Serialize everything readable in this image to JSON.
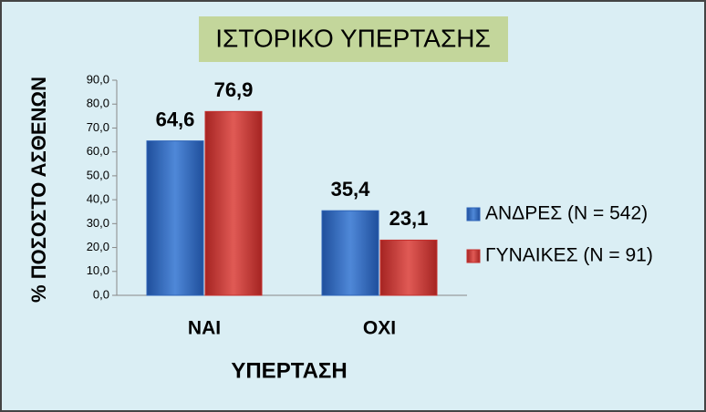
{
  "chart_data": {
    "type": "bar",
    "title": "ΙΣΤΟΡΙΚΟ ΥΠΕΡΤΑΣΗΣ",
    "x_label": "ΥΠΕΡΤΑΣΗ",
    "y_label": "% ΠΟΣΟΣΤΟ ΑΣΘΕΝΩΝ",
    "categories": [
      "ΝΑΙ",
      "ΟΧΙ"
    ],
    "series": [
      {
        "name": "ΑΝΔΡΕΣ (N = 542)",
        "color": "#2e64b8",
        "values": [
          64.6,
          35.4
        ],
        "value_labels": [
          "64,6",
          "35,4"
        ]
      },
      {
        "name": "ΓΥΝΑΙΚΕΣ (N = 91)",
        "color": "#c4302e",
        "values": [
          76.9,
          23.1
        ],
        "value_labels": [
          "76,9",
          "23,1"
        ]
      }
    ],
    "ylim": [
      0,
      90
    ],
    "yticks": [
      {
        "value": 0,
        "label": "0,0"
      },
      {
        "value": 10,
        "label": "10,0"
      },
      {
        "value": 20,
        "label": "20,0"
      },
      {
        "value": 30,
        "label": "30,0"
      },
      {
        "value": 40,
        "label": "40,0"
      },
      {
        "value": 50,
        "label": "50,0"
      },
      {
        "value": 60,
        "label": "60,0"
      },
      {
        "value": 70,
        "label": "70,0"
      },
      {
        "value": 80,
        "label": "80,0"
      },
      {
        "value": 90,
        "label": "90,0"
      }
    ],
    "legend": "right"
  }
}
